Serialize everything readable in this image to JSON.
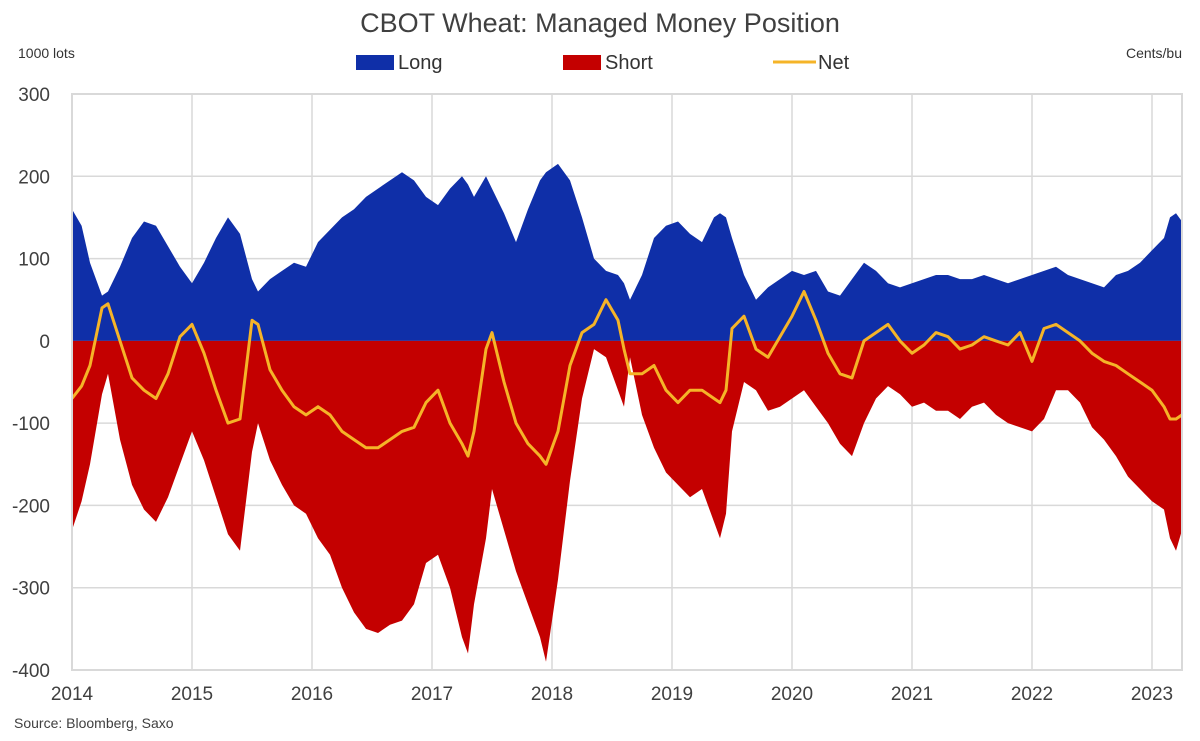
{
  "chart_data": {
    "type": "area",
    "title": "CBOT Wheat: Managed Money Position",
    "left_unit": "1000 lots",
    "right_unit": "Cents/bu",
    "source": "Source: Bloomberg, Saxo",
    "ylim": [
      -400,
      300
    ],
    "yticks": [
      "300",
      "200",
      "100",
      "0",
      "-100",
      "-200",
      "-300",
      "-400"
    ],
    "xlim": [
      2014.0,
      2023.25
    ],
    "xticks": [
      "2014",
      "2015",
      "2016",
      "2017",
      "2018",
      "2019",
      "2020",
      "2021",
      "2022",
      "2023"
    ],
    "grid": true,
    "legend_position": "top-center",
    "colors": {
      "long": "#0f2fa8",
      "short": "#c40000",
      "net": "#f5b428"
    },
    "series": [
      {
        "name": "Long",
        "kind": "area",
        "x": [
          2014.0,
          2014.08,
          2014.15,
          2014.25,
          2014.3,
          2014.4,
          2014.5,
          2014.6,
          2014.7,
          2014.8,
          2014.9,
          2015.0,
          2015.1,
          2015.2,
          2015.3,
          2015.4,
          2015.5,
          2015.55,
          2015.65,
          2015.75,
          2015.85,
          2015.95,
          2016.05,
          2016.15,
          2016.25,
          2016.35,
          2016.45,
          2016.55,
          2016.65,
          2016.75,
          2016.85,
          2016.95,
          2017.05,
          2017.15,
          2017.25,
          2017.3,
          2017.35,
          2017.45,
          2017.5,
          2017.6,
          2017.7,
          2017.8,
          2017.9,
          2017.95,
          2018.05,
          2018.15,
          2018.25,
          2018.35,
          2018.45,
          2018.55,
          2018.6,
          2018.65,
          2018.75,
          2018.85,
          2018.95,
          2019.05,
          2019.15,
          2019.25,
          2019.35,
          2019.4,
          2019.45,
          2019.5,
          2019.6,
          2019.7,
          2019.8,
          2019.9,
          2020.0,
          2020.1,
          2020.2,
          2020.3,
          2020.4,
          2020.5,
          2020.6,
          2020.7,
          2020.8,
          2020.9,
          2021.0,
          2021.1,
          2021.2,
          2021.3,
          2021.4,
          2021.5,
          2021.6,
          2021.7,
          2021.8,
          2021.9,
          2022.0,
          2022.1,
          2022.2,
          2022.3,
          2022.4,
          2022.5,
          2022.6,
          2022.7,
          2022.8,
          2022.9,
          2023.0,
          2023.1,
          2023.15,
          2023.2,
          2023.25
        ],
        "values": [
          160,
          140,
          95,
          55,
          60,
          90,
          125,
          145,
          140,
          115,
          90,
          70,
          95,
          125,
          150,
          130,
          75,
          60,
          75,
          85,
          95,
          90,
          120,
          135,
          150,
          160,
          175,
          185,
          195,
          205,
          195,
          175,
          165,
          185,
          200,
          190,
          175,
          200,
          185,
          155,
          120,
          160,
          195,
          205,
          215,
          195,
          150,
          100,
          85,
          80,
          70,
          50,
          80,
          125,
          140,
          145,
          130,
          120,
          150,
          155,
          150,
          125,
          80,
          50,
          65,
          75,
          85,
          80,
          85,
          60,
          55,
          75,
          95,
          85,
          70,
          65,
          70,
          75,
          80,
          80,
          75,
          75,
          80,
          75,
          70,
          75,
          80,
          85,
          90,
          80,
          75,
          70,
          65,
          80,
          85,
          95,
          110,
          125,
          150,
          155,
          145
        ]
      },
      {
        "name": "Short",
        "kind": "area",
        "x": [
          2014.0,
          2014.08,
          2014.15,
          2014.25,
          2014.3,
          2014.4,
          2014.5,
          2014.6,
          2014.7,
          2014.8,
          2014.9,
          2015.0,
          2015.1,
          2015.2,
          2015.3,
          2015.4,
          2015.5,
          2015.55,
          2015.65,
          2015.75,
          2015.85,
          2015.95,
          2016.05,
          2016.15,
          2016.25,
          2016.35,
          2016.45,
          2016.55,
          2016.65,
          2016.75,
          2016.85,
          2016.95,
          2017.05,
          2017.15,
          2017.25,
          2017.3,
          2017.35,
          2017.45,
          2017.5,
          2017.6,
          2017.7,
          2017.8,
          2017.9,
          2017.95,
          2018.05,
          2018.15,
          2018.25,
          2018.35,
          2018.45,
          2018.55,
          2018.6,
          2018.65,
          2018.75,
          2018.85,
          2018.95,
          2019.05,
          2019.15,
          2019.25,
          2019.35,
          2019.4,
          2019.45,
          2019.5,
          2019.6,
          2019.7,
          2019.8,
          2019.9,
          2020.0,
          2020.1,
          2020.2,
          2020.3,
          2020.4,
          2020.5,
          2020.6,
          2020.7,
          2020.8,
          2020.9,
          2021.0,
          2021.1,
          2021.2,
          2021.3,
          2021.4,
          2021.5,
          2021.6,
          2021.7,
          2021.8,
          2021.9,
          2022.0,
          2022.1,
          2022.2,
          2022.3,
          2022.4,
          2022.5,
          2022.6,
          2022.7,
          2022.8,
          2022.9,
          2023.0,
          2023.1,
          2023.15,
          2023.2,
          2023.25
        ],
        "values": [
          -230,
          -195,
          -150,
          -65,
          -40,
          -120,
          -175,
          -205,
          -220,
          -190,
          -150,
          -110,
          -145,
          -190,
          -235,
          -255,
          -135,
          -100,
          -145,
          -175,
          -200,
          -210,
          -240,
          -260,
          -300,
          -330,
          -350,
          -355,
          -345,
          -340,
          -320,
          -270,
          -260,
          -300,
          -360,
          -380,
          -320,
          -240,
          -180,
          -230,
          -280,
          -320,
          -360,
          -390,
          -290,
          -170,
          -70,
          -10,
          -20,
          -60,
          -80,
          -20,
          -90,
          -130,
          -160,
          -175,
          -190,
          -180,
          -220,
          -240,
          -210,
          -110,
          -50,
          -60,
          -85,
          -80,
          -70,
          -60,
          -80,
          -100,
          -125,
          -140,
          -100,
          -70,
          -55,
          -65,
          -80,
          -75,
          -85,
          -85,
          -95,
          -80,
          -75,
          -90,
          -100,
          -105,
          -110,
          -95,
          -60,
          -60,
          -75,
          -105,
          -120,
          -140,
          -165,
          -180,
          -195,
          -205,
          -240,
          -255,
          -230
        ]
      },
      {
        "name": "Net",
        "kind": "line",
        "x": [
          2014.0,
          2014.08,
          2014.15,
          2014.25,
          2014.3,
          2014.4,
          2014.5,
          2014.6,
          2014.7,
          2014.8,
          2014.9,
          2015.0,
          2015.1,
          2015.2,
          2015.3,
          2015.4,
          2015.5,
          2015.55,
          2015.65,
          2015.75,
          2015.85,
          2015.95,
          2016.05,
          2016.15,
          2016.25,
          2016.35,
          2016.45,
          2016.55,
          2016.65,
          2016.75,
          2016.85,
          2016.95,
          2017.05,
          2017.15,
          2017.25,
          2017.3,
          2017.35,
          2017.45,
          2017.5,
          2017.6,
          2017.7,
          2017.8,
          2017.9,
          2017.95,
          2018.05,
          2018.15,
          2018.25,
          2018.35,
          2018.45,
          2018.55,
          2018.6,
          2018.65,
          2018.75,
          2018.85,
          2018.95,
          2019.05,
          2019.15,
          2019.25,
          2019.35,
          2019.4,
          2019.45,
          2019.5,
          2019.6,
          2019.7,
          2019.8,
          2019.9,
          2020.0,
          2020.1,
          2020.2,
          2020.3,
          2020.4,
          2020.5,
          2020.6,
          2020.7,
          2020.8,
          2020.9,
          2021.0,
          2021.1,
          2021.2,
          2021.3,
          2021.4,
          2021.5,
          2021.6,
          2021.7,
          2021.8,
          2021.9,
          2022.0,
          2022.1,
          2022.2,
          2022.3,
          2022.4,
          2022.5,
          2022.6,
          2022.7,
          2022.8,
          2022.9,
          2023.0,
          2023.1,
          2023.15,
          2023.2,
          2023.25
        ],
        "values": [
          -70,
          -55,
          -30,
          40,
          45,
          0,
          -45,
          -60,
          -70,
          -40,
          5,
          20,
          -15,
          -60,
          -100,
          -95,
          25,
          20,
          -35,
          -60,
          -80,
          -90,
          -80,
          -90,
          -110,
          -120,
          -130,
          -130,
          -120,
          -110,
          -105,
          -75,
          -60,
          -100,
          -125,
          -140,
          -110,
          -10,
          10,
          -50,
          -100,
          -125,
          -140,
          -150,
          -110,
          -30,
          10,
          20,
          50,
          25,
          -10,
          -40,
          -40,
          -30,
          -60,
          -75,
          -60,
          -60,
          -70,
          -75,
          -60,
          15,
          30,
          -10,
          -20,
          5,
          30,
          60,
          25,
          -15,
          -40,
          -45,
          0,
          10,
          20,
          0,
          -15,
          -5,
          10,
          5,
          -10,
          -5,
          5,
          0,
          -5,
          10,
          -25,
          15,
          20,
          10,
          0,
          -15,
          -25,
          -30,
          -40,
          -50,
          -60,
          -80,
          -95,
          -95,
          -90
        ]
      }
    ]
  }
}
